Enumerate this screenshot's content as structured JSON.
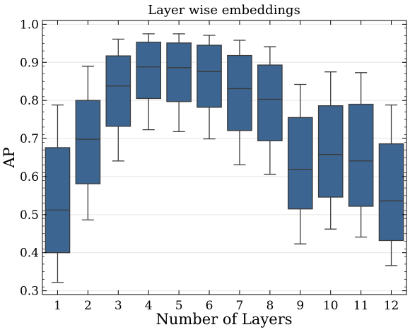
{
  "chart_data": {
    "type": "box",
    "title": "Layer wise embeddings",
    "xlabel": "Number of Layers",
    "ylabel": "AP",
    "ylim": [
      0.29,
      1.01
    ],
    "yticks": [
      0.3,
      0.4,
      0.5,
      0.6,
      0.7,
      0.8,
      0.9,
      1.0
    ],
    "ytick_labels": [
      "0.3",
      "0.4",
      "0.5",
      "0.6",
      "0.7",
      "0.8",
      "0.9",
      "1.0"
    ],
    "grid": "horizontal",
    "box_color": "#3d6591",
    "edge_color": "#3a3a3a",
    "categories": [
      "1",
      "2",
      "3",
      "4",
      "5",
      "6",
      "7",
      "8",
      "9",
      "10",
      "11",
      "12"
    ],
    "boxes": [
      {
        "whisker_low": 0.322,
        "q1": 0.4,
        "median": 0.512,
        "q3": 0.676,
        "whisker_high": 0.788
      },
      {
        "whisker_low": 0.486,
        "q1": 0.581,
        "median": 0.698,
        "q3": 0.8,
        "whisker_high": 0.89
      },
      {
        "whisker_low": 0.641,
        "q1": 0.732,
        "median": 0.838,
        "q3": 0.917,
        "whisker_high": 0.961
      },
      {
        "whisker_low": 0.723,
        "q1": 0.805,
        "median": 0.888,
        "q3": 0.953,
        "whisker_high": 0.975
      },
      {
        "whisker_low": 0.718,
        "q1": 0.797,
        "median": 0.886,
        "q3": 0.951,
        "whisker_high": 0.975
      },
      {
        "whisker_low": 0.699,
        "q1": 0.782,
        "median": 0.876,
        "q3": 0.945,
        "whisker_high": 0.971
      },
      {
        "whisker_low": 0.631,
        "q1": 0.721,
        "median": 0.831,
        "q3": 0.918,
        "whisker_high": 0.958
      },
      {
        "whisker_low": 0.606,
        "q1": 0.694,
        "median": 0.803,
        "q3": 0.893,
        "whisker_high": 0.941
      },
      {
        "whisker_low": 0.423,
        "q1": 0.515,
        "median": 0.619,
        "q3": 0.755,
        "whisker_high": 0.842
      },
      {
        "whisker_low": 0.462,
        "q1": 0.546,
        "median": 0.658,
        "q3": 0.786,
        "whisker_high": 0.875
      },
      {
        "whisker_low": 0.441,
        "q1": 0.522,
        "median": 0.641,
        "q3": 0.79,
        "whisker_high": 0.873
      },
      {
        "whisker_low": 0.366,
        "q1": 0.432,
        "median": 0.536,
        "q3": 0.686,
        "whisker_high": 0.788
      }
    ]
  }
}
